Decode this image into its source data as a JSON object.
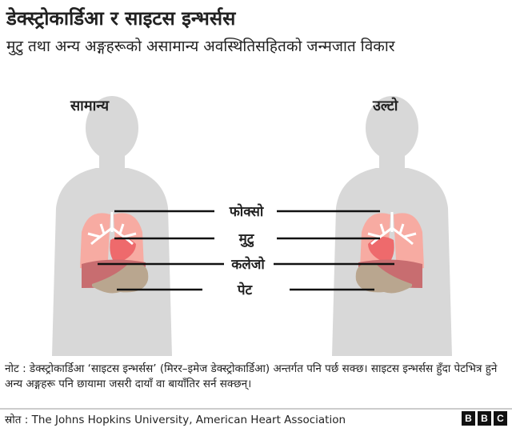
{
  "title": "डेक्स्ट्रोकार्डिआ र साइटस इन्भर्सस",
  "subtitle": "मुटु तथा अन्य अङ्गहरूको असामान्य अवस्थितिसहितको जन्मजात विकार",
  "diagram": {
    "normal_label": "सामान्य",
    "reversed_label": "उल्टो",
    "organs": [
      "फोक्सो",
      "मुटु",
      "कलेजो",
      "पेट"
    ],
    "colors": {
      "body": "#d8d8d8",
      "lungs": "#f7aba2",
      "heart": "#ee6a6c",
      "liver": "#c86d70",
      "stomach": "#b9a68f",
      "airways": "#ffffff"
    }
  },
  "note": "नोट : डेक्स्ट्रोकार्डिआ ‘साइटस इन्भर्सस’ (मिरर–इमेज डेक्स्ट्रोकार्डिआ) अन्तर्गत पनि पर्छ सक्छ। साइटस इन्भर्सस हुँदा पेटभित्र हुने अन्य अङ्गहरू पनि छायामा जसरी दायाँ वा बायाँतिर सर्न सक्छन्।",
  "source": "स्रोत : The Johns Hopkins University, American Heart Association",
  "logo": [
    "B",
    "B",
    "C"
  ]
}
